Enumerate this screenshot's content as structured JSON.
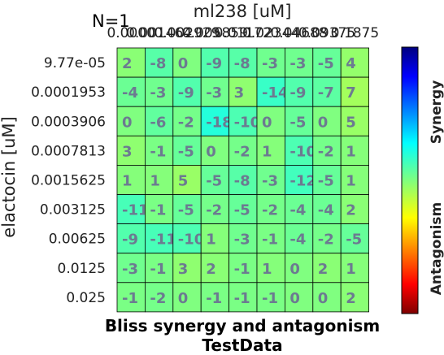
{
  "chart_data": {
    "type": "heatmap",
    "annotation": "N=1",
    "xlabel": "ml238 [uM]",
    "ylabel": "elactocin [uM]",
    "title": "Bliss synergy and antagonism",
    "subtitle": "TestData",
    "x_ticks": [
      "0.0000",
      "0.001464",
      "0.002929",
      "0.005859",
      "0.01172",
      "0.02344",
      "0.04688",
      "0.09375",
      "0.1875"
    ],
    "y_ticks": [
      "9.77e-05",
      "0.0001953",
      "0.0003906",
      "0.0007813",
      "0.0015625",
      "0.003125",
      "0.00625",
      "0.0125",
      "0.025"
    ],
    "values": [
      [
        2,
        -8,
        0,
        -9,
        -8,
        -3,
        -3,
        -5,
        4
      ],
      [
        -4,
        -3,
        -9,
        -3,
        3,
        -14,
        -9,
        -7,
        7
      ],
      [
        0,
        -6,
        -2,
        -18,
        -10,
        0,
        -5,
        0,
        5
      ],
      [
        3,
        -1,
        -5,
        0,
        -2,
        1,
        -10,
        -2,
        1
      ],
      [
        1,
        1,
        5,
        -5,
        -8,
        -3,
        -12,
        -5,
        1
      ],
      [
        -11,
        -1,
        -5,
        -2,
        -5,
        -2,
        -4,
        -4,
        2
      ],
      [
        -9,
        -11,
        -10,
        1,
        -3,
        -1,
        -4,
        -2,
        -5
      ],
      [
        -3,
        -1,
        3,
        2,
        -1,
        1,
        0,
        2,
        1
      ],
      [
        -1,
        -2,
        0,
        -1,
        -1,
        -1,
        0,
        0,
        2
      ]
    ],
    "colorbar": {
      "top_label": "Synergy",
      "bottom_label": "Antagonism",
      "vmin": -100,
      "vmax": 100,
      "colormap": "jet"
    }
  }
}
